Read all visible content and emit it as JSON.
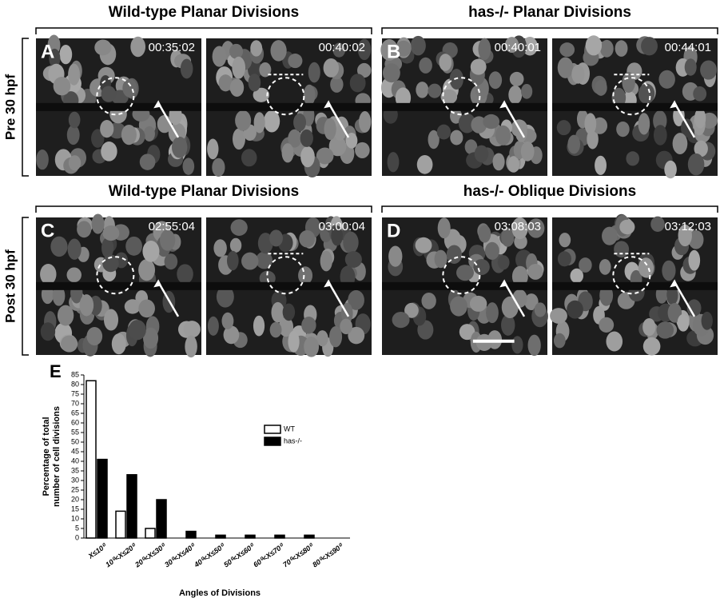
{
  "titles": [
    "Wild-type Planar Divisions",
    "has-/- Planar Divisions",
    "Wild-type Planar Divisions",
    "has-/- Oblique Divisions"
  ],
  "row_labels": [
    "Pre 30 hpf",
    "Post 30 hpf"
  ],
  "panels": [
    {
      "letter": "A",
      "times": [
        "00:35:02",
        "00:40:02"
      ]
    },
    {
      "letter": "B",
      "times": [
        "00:40:01",
        "00:44:01"
      ]
    },
    {
      "letter": "C",
      "times": [
        "02:55:04",
        "03:00:04"
      ]
    },
    {
      "letter": "D",
      "times": [
        "03:08:03",
        "03:12:03"
      ]
    }
  ],
  "chart_data": {
    "type": "bar",
    "panel_letter": "E",
    "y_label": [
      "Percentage of total",
      "number of cell divisions"
    ],
    "x_label": "Angles of Divisions",
    "categories": [
      "X≤10⁰",
      "10⁰<X≤20⁰",
      "20⁰<X≤30⁰",
      "30⁰<X≤40⁰",
      "40⁰<X≤50⁰",
      "50⁰<X≤60⁰",
      "60⁰<X≤70⁰",
      "70⁰<X≤80⁰",
      "80⁰<X≤90⁰"
    ],
    "series": [
      {
        "name": "WT",
        "color": "#ffffff",
        "values": [
          82,
          14,
          5,
          0,
          0,
          0,
          0,
          0,
          0
        ]
      },
      {
        "name": "has-/-",
        "color": "#000000",
        "values": [
          41,
          33,
          20,
          3.5,
          1.5,
          1.5,
          1.5,
          1.5,
          0
        ]
      }
    ],
    "ylim": [
      0,
      85
    ],
    "yticks": [
      0,
      5,
      10,
      15,
      20,
      25,
      30,
      35,
      40,
      45,
      50,
      55,
      60,
      65,
      70,
      75,
      80,
      85
    ]
  }
}
